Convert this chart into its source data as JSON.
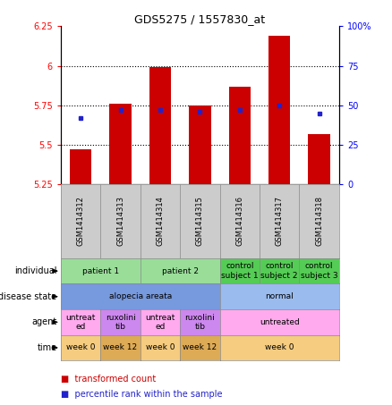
{
  "title": "GDS5275 / 1557830_at",
  "samples": [
    "GSM1414312",
    "GSM1414313",
    "GSM1414314",
    "GSM1414315",
    "GSM1414316",
    "GSM1414317",
    "GSM1414318"
  ],
  "transformed_count": [
    5.47,
    5.76,
    5.99,
    5.75,
    5.87,
    6.19,
    5.57
  ],
  "percentile_rank": [
    42,
    47,
    47,
    46,
    47,
    50,
    45
  ],
  "ylim_left": [
    5.25,
    6.25
  ],
  "ylim_right": [
    0,
    100
  ],
  "yticks_left": [
    5.25,
    5.5,
    5.75,
    6.0,
    6.25
  ],
  "ytick_labels_left": [
    "5.25",
    "5.5",
    "5.75",
    "6",
    "6.25"
  ],
  "yticks_right": [
    0,
    25,
    50,
    75,
    100
  ],
  "ytick_labels_right": [
    "0",
    "25",
    "50",
    "75",
    "100%"
  ],
  "bar_color": "#cc0000",
  "dot_color": "#2222cc",
  "bar_bottom": 5.25,
  "grid_lines": [
    5.5,
    5.75,
    6.0
  ],
  "annotation_rows": [
    {
      "label": "individual",
      "cells": [
        {
          "text": "patient 1",
          "colspan": 2,
          "color": "#99dd99"
        },
        {
          "text": "patient 2",
          "colspan": 2,
          "color": "#99dd99"
        },
        {
          "text": "control\nsubject 1",
          "colspan": 1,
          "color": "#55cc55"
        },
        {
          "text": "control\nsubject 2",
          "colspan": 1,
          "color": "#55cc55"
        },
        {
          "text": "control\nsubject 3",
          "colspan": 1,
          "color": "#55cc55"
        }
      ]
    },
    {
      "label": "disease state",
      "cells": [
        {
          "text": "alopecia areata",
          "colspan": 4,
          "color": "#7799dd"
        },
        {
          "text": "normal",
          "colspan": 3,
          "color": "#99bbee"
        }
      ]
    },
    {
      "label": "agent",
      "cells": [
        {
          "text": "untreat\ned",
          "colspan": 1,
          "color": "#ffaaee"
        },
        {
          "text": "ruxolini\ntib",
          "colspan": 1,
          "color": "#cc88ee"
        },
        {
          "text": "untreat\ned",
          "colspan": 1,
          "color": "#ffaaee"
        },
        {
          "text": "ruxolini\ntib",
          "colspan": 1,
          "color": "#cc88ee"
        },
        {
          "text": "untreated",
          "colspan": 3,
          "color": "#ffaaee"
        }
      ]
    },
    {
      "label": "time",
      "cells": [
        {
          "text": "week 0",
          "colspan": 1,
          "color": "#f5cc80"
        },
        {
          "text": "week 12",
          "colspan": 1,
          "color": "#ddaa55"
        },
        {
          "text": "week 0",
          "colspan": 1,
          "color": "#f5cc80"
        },
        {
          "text": "week 12",
          "colspan": 1,
          "color": "#ddaa55"
        },
        {
          "text": "week 0",
          "colspan": 3,
          "color": "#f5cc80"
        }
      ]
    }
  ],
  "legend": [
    {
      "color": "#cc0000",
      "label": "transformed count"
    },
    {
      "color": "#2222cc",
      "label": "percentile rank within the sample"
    }
  ],
  "sample_box_color": "#cccccc",
  "sample_box_edge": "#888888"
}
